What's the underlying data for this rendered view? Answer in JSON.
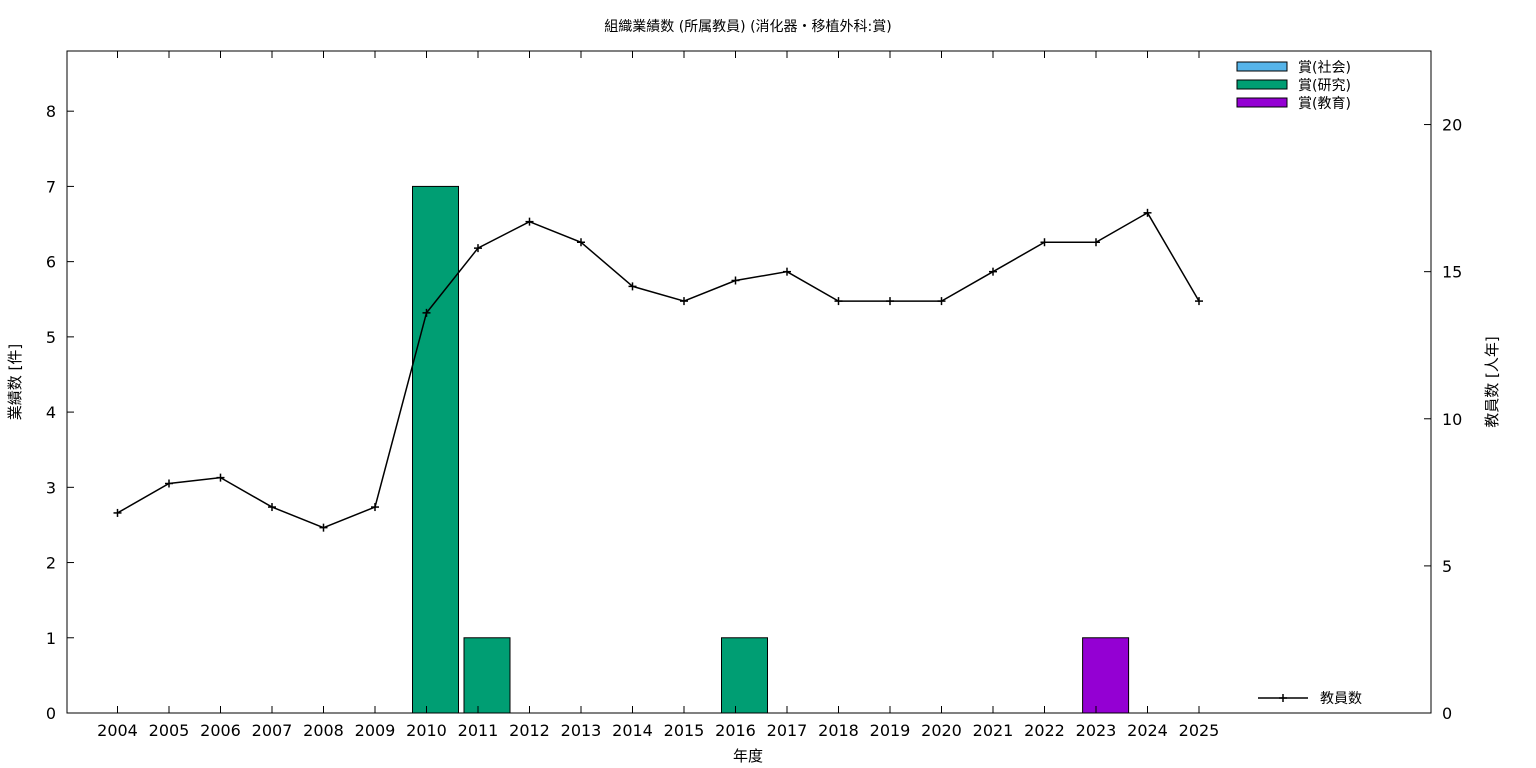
{
  "chart_data": {
    "type": "bar",
    "title": "組織業績数 (所属教員) (消化器・移植外科:賞)",
    "xlabel": "年度",
    "ylabel": "業績数 [件]",
    "y2label": "教員数 [人年]",
    "ylim": [
      0,
      8.8
    ],
    "y2lim": [
      0,
      22.5
    ],
    "yticks": [
      0,
      1,
      2,
      3,
      4,
      5,
      6,
      7,
      8
    ],
    "y2ticks": [
      0,
      5,
      10,
      15,
      20
    ],
    "grid": false,
    "legend_position": "top-right",
    "categories": [
      "2004",
      "2005",
      "2006",
      "2007",
      "2008",
      "2009",
      "2010",
      "2011",
      "2012",
      "2013",
      "2014",
      "2015",
      "2016",
      "2017",
      "2018",
      "2019",
      "2020",
      "2021",
      "2022",
      "2023",
      "2024",
      "2025"
    ],
    "series": [
      {
        "name": "賞(社会)",
        "color": "#56b4e9",
        "values": [
          0,
          0,
          0,
          0,
          0,
          0,
          0,
          0,
          0,
          0,
          0,
          0,
          0,
          0,
          0,
          0,
          0,
          0,
          0,
          0,
          0,
          0
        ]
      },
      {
        "name": "賞(研究)",
        "color": "#009e73",
        "values": [
          0,
          0,
          0,
          0,
          0,
          0,
          7,
          1,
          0,
          0,
          0,
          0,
          1,
          0,
          0,
          0,
          0,
          0,
          0,
          0,
          0,
          0
        ]
      },
      {
        "name": "賞(教育)",
        "color": "#9400d3",
        "values": [
          0,
          0,
          0,
          0,
          0,
          0,
          0,
          0,
          0,
          0,
          0,
          0,
          0,
          0,
          0,
          0,
          0,
          0,
          0,
          1,
          0,
          0
        ]
      }
    ],
    "line_series": {
      "name": "教員数",
      "color": "#000000",
      "axis": "y2",
      "values": [
        6.8,
        7.8,
        8.0,
        7.0,
        6.3,
        7.0,
        13.6,
        15.8,
        16.7,
        16.0,
        14.5,
        14.0,
        14.7,
        15.0,
        14.0,
        14.0,
        14.0,
        15.0,
        16.0,
        16.0,
        17.0,
        14.0
      ]
    }
  }
}
